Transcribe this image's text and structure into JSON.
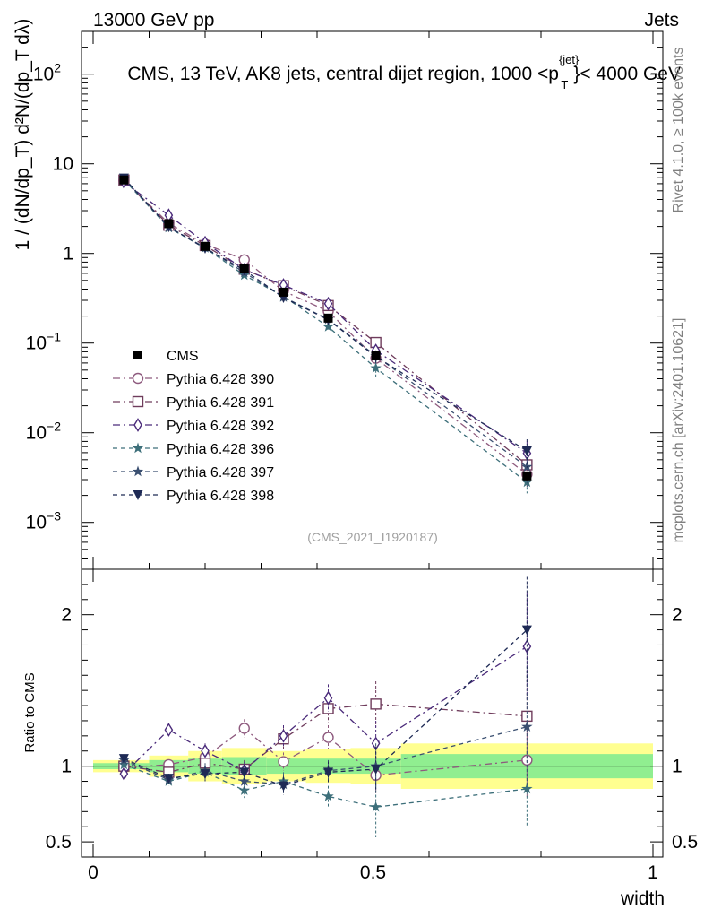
{
  "header": {
    "left": "13000 GeV pp",
    "right": "Jets"
  },
  "side_text": {
    "top": "Rivet 4.1.0, ≥ 100k events",
    "bottom": "mcplots.cern.ch [arXiv:2401.10621]"
  },
  "watermark": "(CMS_2021_I1920187)",
  "colors": {
    "data": "#000000",
    "p390": "#8e5a7e",
    "p391": "#6f3c5c",
    "p392": "#4a2a7a",
    "p396": "#3d6f7a",
    "p397": "#3a4f70",
    "p398": "#1e2a55",
    "band_stat": "#90ee90",
    "band_total": "#ffff90"
  },
  "chart_data": {
    "type": "line",
    "title": "CMS, 13 TeV, AK8 jets, central dijet region, 1000 <p_T^{jet}< 4000 GeV",
    "title_main": "CMS, 13 TeV, AK8 jets, central dijet region, 1000 <p",
    "title_sup": "{jet}",
    "title_sub": "T",
    "title_end": "}< 4000 GeV",
    "ylabel_main": "1 / (dN/dp_T) d²N/(dp_T dλ)",
    "ylabel_ratio": "Ratio to CMS",
    "xlabel": "width",
    "xlim": [
      0,
      1
    ],
    "ylim_main": [
      0.0003,
      300
    ],
    "ylim_ratio": [
      0.4,
      2.3
    ],
    "x_ticks": [
      {
        "v": 0,
        "label": "0"
      },
      {
        "v": 0.5,
        "label": "0.5"
      },
      {
        "v": 1,
        "label": "1"
      }
    ],
    "y_ticks_main": [
      {
        "v": 0.001,
        "base": "10",
        "exp": "−3"
      },
      {
        "v": 0.01,
        "base": "10",
        "exp": "−2"
      },
      {
        "v": 0.1,
        "base": "10",
        "exp": "−1"
      },
      {
        "v": 1,
        "base": "1",
        "exp": ""
      },
      {
        "v": 10,
        "base": "10",
        "exp": ""
      },
      {
        "v": 100,
        "base": "10",
        "exp": "2"
      }
    ],
    "y_ticks_ratio": [
      {
        "v": 0.5,
        "label": "0.5"
      },
      {
        "v": 1,
        "label": "1"
      },
      {
        "v": 2,
        "label": "2"
      }
    ],
    "x": [
      0.055,
      0.135,
      0.2,
      0.27,
      0.34,
      0.42,
      0.505,
      0.775
    ],
    "bin_edges": [
      0,
      0.1,
      0.17,
      0.23,
      0.31,
      0.38,
      0.46,
      0.55,
      1.0
    ],
    "data": {
      "name": "CMS",
      "values": [
        6.6,
        2.15,
        1.2,
        0.68,
        0.37,
        0.19,
        0.072,
        0.0033
      ],
      "band_stat": [
        0.02,
        0.04,
        0.05,
        0.06,
        0.05,
        0.05,
        0.05,
        0.08
      ],
      "band_total": [
        0.04,
        0.07,
        0.1,
        0.12,
        0.1,
        0.11,
        0.12,
        0.15
      ]
    },
    "series": [
      {
        "name": "Pythia 6.428 390",
        "key": "p390",
        "marker": "circle",
        "dash": "8 4 2 4",
        "ratio": [
          0.99,
          1.01,
          1.06,
          1.25,
          1.03,
          1.19,
          0.94,
          1.04
        ],
        "ratio_err": [
          0.02,
          0.03,
          0.05,
          0.06,
          0.06,
          0.08,
          0.12,
          0.25
        ]
      },
      {
        "name": "Pythia 6.428 391",
        "key": "p391",
        "marker": "square",
        "dash": "8 4 2 4",
        "ratio": [
          1.0,
          0.96,
          1.02,
          0.98,
          1.18,
          1.38,
          1.41,
          1.33
        ],
        "ratio_err": [
          0.02,
          0.03,
          0.05,
          0.06,
          0.07,
          0.09,
          0.15,
          0.3
        ]
      },
      {
        "name": "Pythia 6.428 392",
        "key": "p392",
        "marker": "diamond",
        "dash": "8 4 2 4",
        "ratio": [
          0.95,
          1.24,
          1.1,
          0.97,
          1.2,
          1.45,
          1.15,
          1.79
        ],
        "ratio_err": [
          0.02,
          0.04,
          0.05,
          0.06,
          0.07,
          0.09,
          0.15,
          0.35
        ]
      },
      {
        "name": "Pythia 6.428 396",
        "key": "p396",
        "marker": "star",
        "dash": "5 4",
        "ratio": [
          1.01,
          0.9,
          0.96,
          0.84,
          0.9,
          0.8,
          0.73,
          0.85
        ],
        "ratio_err": [
          0.02,
          0.03,
          0.05,
          0.05,
          0.06,
          0.07,
          0.2,
          0.25
        ]
      },
      {
        "name": "Pythia 6.428 397",
        "key": "p397",
        "marker": "star",
        "dash": "5 4",
        "ratio": [
          1.04,
          0.91,
          0.97,
          0.9,
          0.88,
          0.97,
          1.0,
          1.26
        ],
        "ratio_err": [
          0.02,
          0.03,
          0.05,
          0.05,
          0.06,
          0.07,
          0.15,
          0.4
        ]
      },
      {
        "name": "Pythia 6.428 398",
        "key": "p398",
        "marker": "tri_down",
        "dash": "5 4",
        "ratio": [
          1.05,
          0.92,
          0.95,
          0.96,
          0.87,
          0.96,
          0.98,
          1.9
        ],
        "ratio_err": [
          0.02,
          0.03,
          0.05,
          0.05,
          0.06,
          0.07,
          0.15,
          0.35
        ]
      }
    ]
  }
}
